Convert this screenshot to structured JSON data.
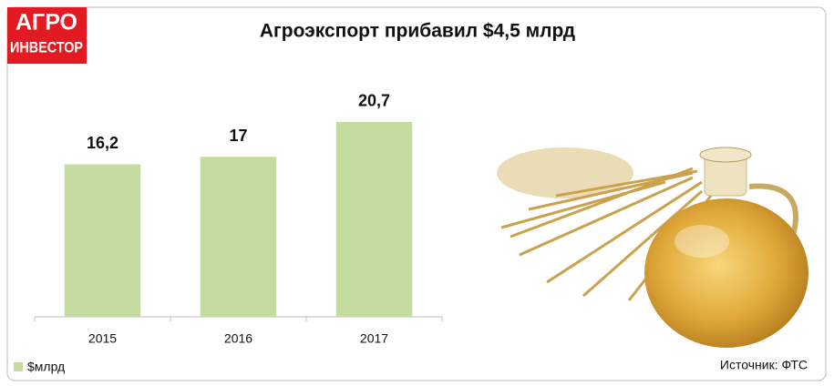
{
  "logo": {
    "line1": "АГРО",
    "line2": "ИНВЕСТОР"
  },
  "chart_data": {
    "type": "bar",
    "title": "Агроэкспорт прибавил $4,5 млрд",
    "categories": [
      "2015",
      "2016",
      "2017"
    ],
    "series": [
      {
        "name": "$млрд",
        "color": "#c5dca0",
        "values": [
          16.2,
          17,
          20.7
        ],
        "value_labels": [
          "16,2",
          "17",
          "20,7"
        ]
      }
    ],
    "ylim": [
      0,
      25
    ],
    "source": "Источник: ФТС"
  }
}
